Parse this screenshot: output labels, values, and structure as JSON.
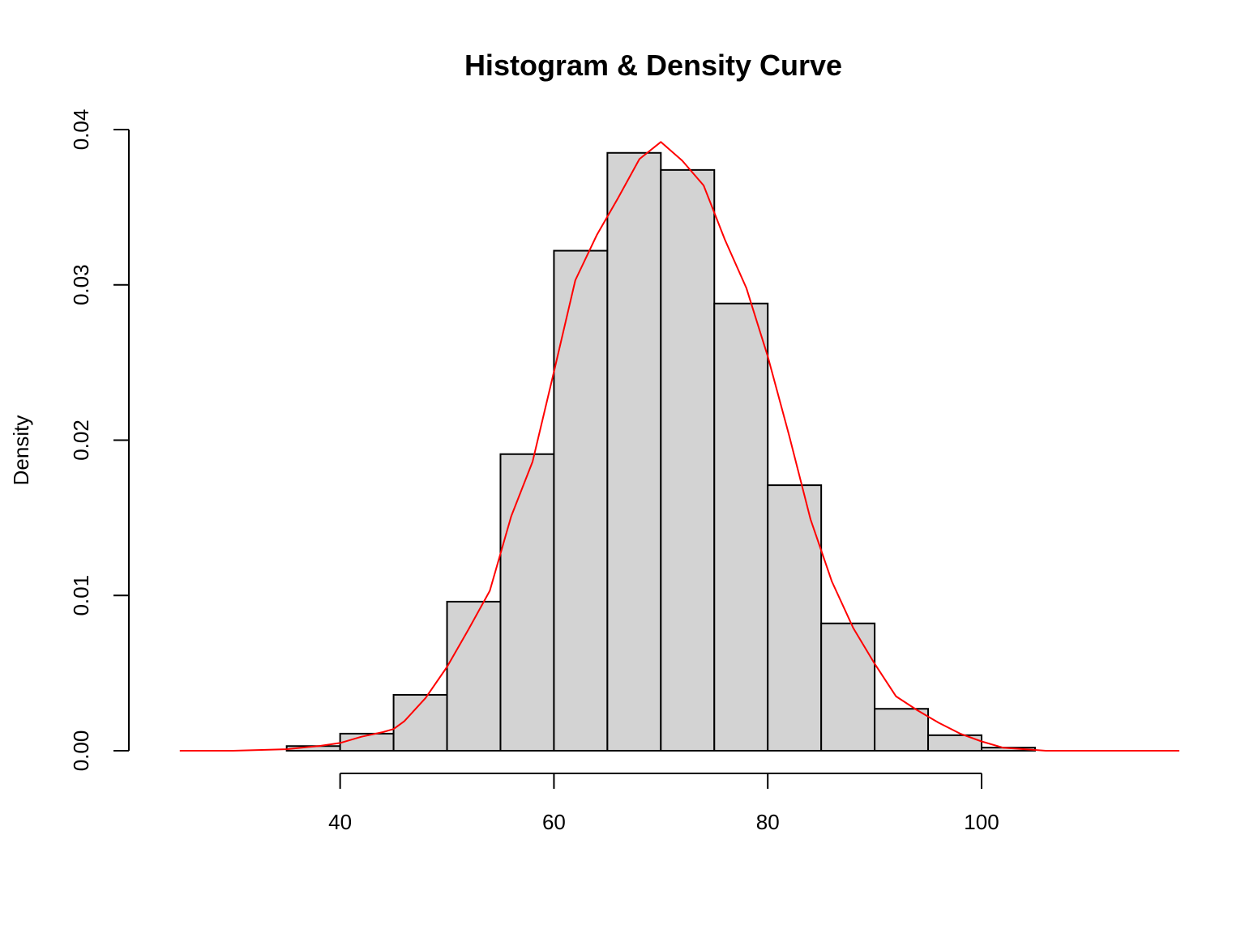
{
  "chart_data": {
    "type": "bar",
    "title": "Histogram & Density Curve",
    "xlabel": "",
    "ylabel": "Density",
    "bin_edges": [
      35,
      40,
      45,
      50,
      55,
      60,
      65,
      70,
      75,
      80,
      85,
      90,
      95,
      100,
      105
    ],
    "values": [
      0.0003,
      0.0011,
      0.0036,
      0.0096,
      0.0191,
      0.0322,
      0.0385,
      0.0374,
      0.0288,
      0.0171,
      0.0082,
      0.0027,
      0.001,
      0.0002
    ],
    "xlim": [
      23.5,
      118.5
    ],
    "ylim": [
      0,
      0.04
    ],
    "x_ticks": [
      40,
      60,
      80,
      100
    ],
    "x_tick_labels": [
      "40",
      "60",
      "80",
      "100"
    ],
    "y_ticks": [
      0,
      0.01,
      0.02,
      0.03,
      0.04
    ],
    "y_tick_labels": [
      "0.00",
      "0.01",
      "0.02",
      "0.03",
      "0.04"
    ],
    "grid": false,
    "bar_fill": "#d3d3d3",
    "bar_stroke": "#000000",
    "series": [
      {
        "type": "line",
        "color": "#ff0000",
        "x": [
          25,
          30,
          35,
          38,
          40,
          42,
          44,
          45,
          46,
          48,
          50,
          52,
          54,
          56,
          58,
          60,
          62,
          64,
          66,
          68,
          70,
          72,
          74,
          76,
          78,
          80,
          82,
          84,
          86,
          88,
          90,
          92,
          94,
          96,
          98,
          100,
          102,
          104,
          106,
          110,
          118.5
        ],
        "y": [
          0.0,
          0.0,
          0.0001,
          0.0003,
          0.0005,
          0.0009,
          0.0012,
          0.0014,
          0.0019,
          0.0034,
          0.0054,
          0.0078,
          0.0103,
          0.0151,
          0.0186,
          0.0244,
          0.0303,
          0.0332,
          0.0356,
          0.0381,
          0.0392,
          0.038,
          0.0364,
          0.0329,
          0.0298,
          0.0254,
          0.0203,
          0.0149,
          0.0109,
          0.0079,
          0.0056,
          0.0035,
          0.0026,
          0.0018,
          0.0011,
          0.0006,
          0.0002,
          0.0001,
          0.0,
          0.0,
          0.0
        ]
      }
    ]
  }
}
